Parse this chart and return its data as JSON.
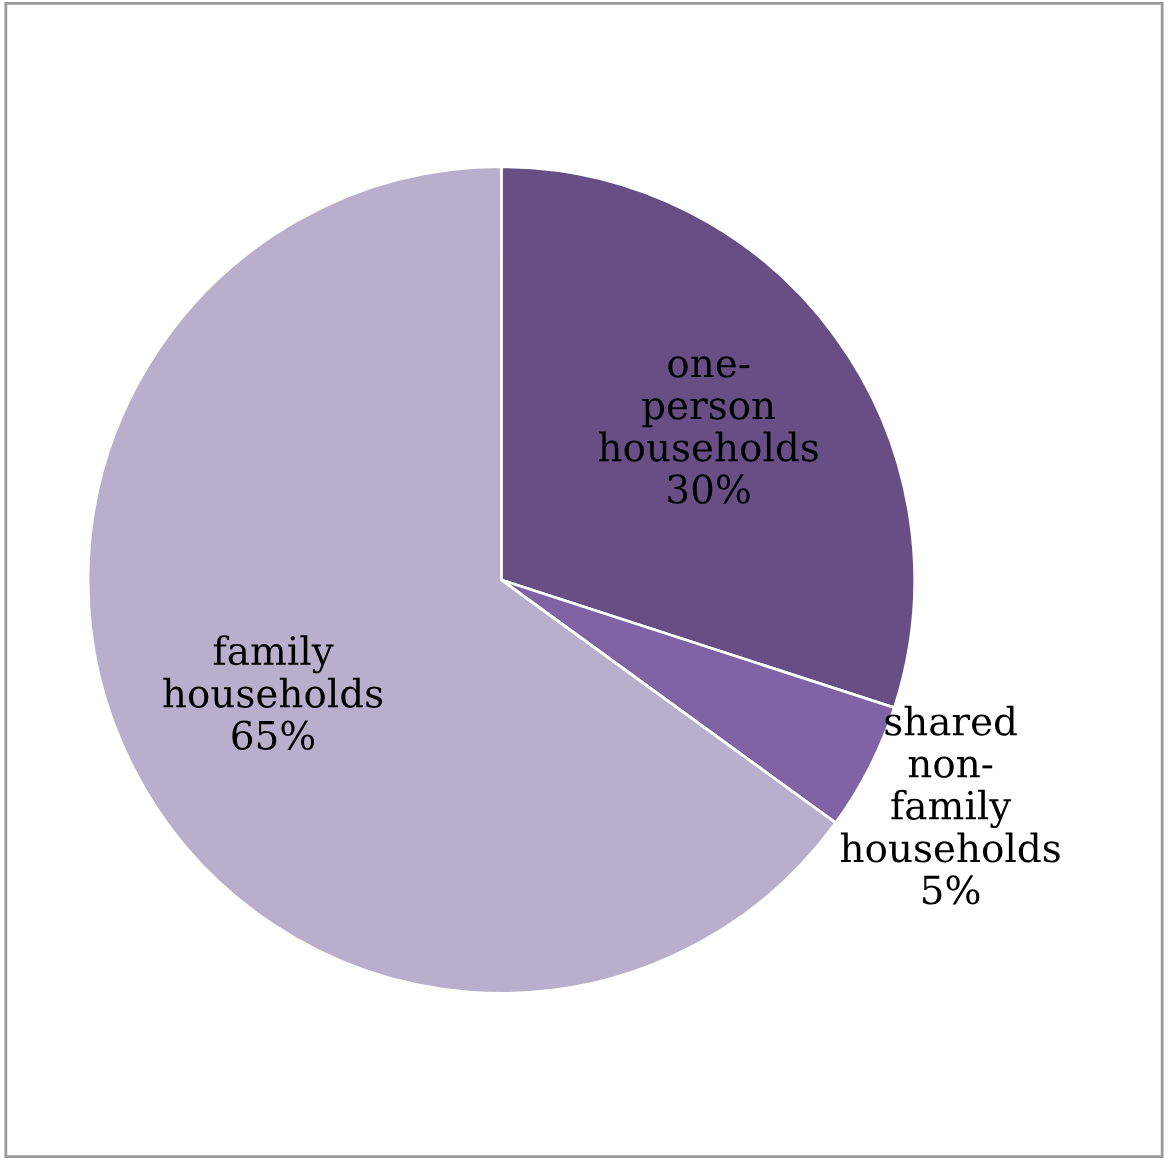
{
  "chart_data": {
    "type": "pie",
    "categories": [
      "one-person households",
      "shared non-family households",
      "family households"
    ],
    "values": [
      30,
      5,
      65
    ],
    "colors": [
      "#674f86",
      "#7f63a5",
      "#b9aecb"
    ],
    "value_labels": [
      "30%",
      "5%",
      "65%"
    ],
    "legend": false
  }
}
